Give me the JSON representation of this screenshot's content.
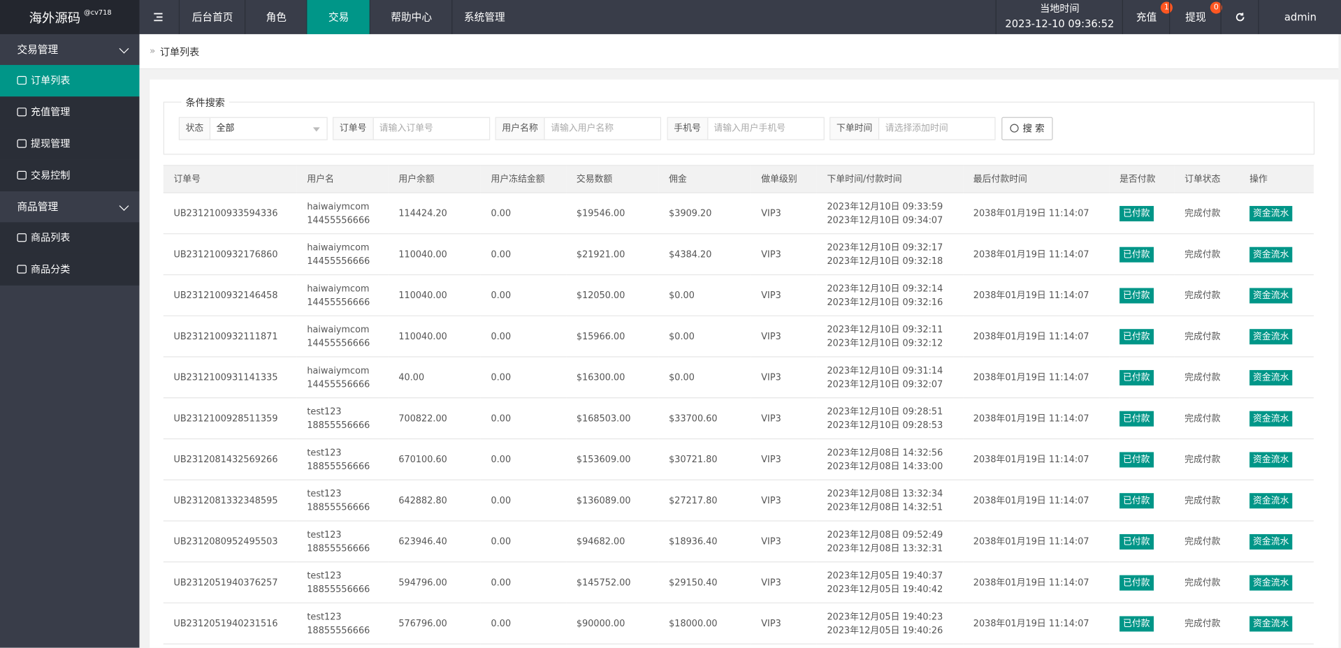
{
  "header": {
    "brand": "海外源码",
    "brand_sub": "@cv718",
    "nav": [
      "后台首页",
      "角色",
      "交易",
      "帮助中心",
      "系统管理"
    ],
    "active_nav": 2,
    "time_label": "当地时间",
    "time": "2023-12-10 09:36:52",
    "recharge": "充值",
    "recharge_badge": "1",
    "withdraw": "提现",
    "withdraw_badge": "0",
    "user": "admin"
  },
  "sidebar": [
    {
      "title": "交易管理",
      "items": [
        "订单列表",
        "充值管理",
        "提现管理",
        "交易控制"
      ]
    },
    {
      "title": "商品管理",
      "items": [
        "商品列表",
        "商品分类"
      ]
    }
  ],
  "breadcrumb": "订单列表",
  "search": {
    "legend": "条件搜索",
    "fields": [
      {
        "label": "状态",
        "value": "全部"
      },
      {
        "label": "订单号",
        "placeholder": "请输入订单号"
      },
      {
        "label": "用户名称",
        "placeholder": "请输入用户名称"
      },
      {
        "label": "手机号",
        "placeholder": "请输入用户手机号"
      },
      {
        "label": "下单时间",
        "placeholder": "请选择添加时间"
      }
    ],
    "button": "搜 索"
  },
  "table": {
    "columns": [
      "订单号",
      "用户名",
      "用户余额",
      "用户冻结金额",
      "交易数额",
      "佣金",
      "做单级别",
      "下单时间/付款时间",
      "最后付款时间",
      "是否付款",
      "订单状态",
      "操作"
    ],
    "rows": [
      [
        "UB2312100933594336",
        "haiwaiymcom",
        "14455556666",
        "114424.20",
        "0.00",
        "$19546.00",
        "$3909.20",
        "VIP3",
        "2023年12月10日 09:33:59",
        "2023年12月10日 09:34:07",
        "2038年01月19日 11:14:07",
        "已付款",
        "完成付款",
        "资金流水"
      ],
      [
        "UB2312100932176860",
        "haiwaiymcom",
        "14455556666",
        "110040.00",
        "0.00",
        "$21921.00",
        "$4384.20",
        "VIP3",
        "2023年12月10日 09:32:17",
        "2023年12月10日 09:32:18",
        "2038年01月19日 11:14:07",
        "已付款",
        "完成付款",
        "资金流水"
      ],
      [
        "UB2312100932146458",
        "haiwaiymcom",
        "14455556666",
        "110040.00",
        "0.00",
        "$12050.00",
        "$0.00",
        "VIP3",
        "2023年12月10日 09:32:14",
        "2023年12月10日 09:32:16",
        "2038年01月19日 11:14:07",
        "已付款",
        "完成付款",
        "资金流水"
      ],
      [
        "UB2312100932111871",
        "haiwaiymcom",
        "14455556666",
        "110040.00",
        "0.00",
        "$15966.00",
        "$0.00",
        "VIP3",
        "2023年12月10日 09:32:11",
        "2023年12月10日 09:32:12",
        "2038年01月19日 11:14:07",
        "已付款",
        "完成付款",
        "资金流水"
      ],
      [
        "UB2312100931141335",
        "haiwaiymcom",
        "14455556666",
        "40.00",
        "0.00",
        "$16300.00",
        "$0.00",
        "VIP3",
        "2023年12月10日 09:31:14",
        "2023年12月10日 09:32:07",
        "2038年01月19日 11:14:07",
        "已付款",
        "完成付款",
        "资金流水"
      ],
      [
        "UB2312100928511359",
        "test123",
        "18855556666",
        "700822.00",
        "0.00",
        "$168503.00",
        "$33700.60",
        "VIP3",
        "2023年12月10日 09:28:51",
        "2023年12月10日 09:28:53",
        "2038年01月19日 11:14:07",
        "已付款",
        "完成付款",
        "资金流水"
      ],
      [
        "UB2312081432569266",
        "test123",
        "18855556666",
        "670100.60",
        "0.00",
        "$153609.00",
        "$30721.80",
        "VIP3",
        "2023年12月08日 14:32:56",
        "2023年12月08日 14:33:00",
        "2038年01月19日 11:14:07",
        "已付款",
        "完成付款",
        "资金流水"
      ],
      [
        "UB2312081332348595",
        "test123",
        "18855556666",
        "642882.80",
        "0.00",
        "$136089.00",
        "$27217.80",
        "VIP3",
        "2023年12月08日 13:32:34",
        "2023年12月08日 14:32:51",
        "2038年01月19日 11:14:07",
        "已付款",
        "完成付款",
        "资金流水"
      ],
      [
        "UB2312080952495503",
        "test123",
        "18855556666",
        "623946.40",
        "0.00",
        "$94682.00",
        "$18936.40",
        "VIP3",
        "2023年12月08日 09:52:49",
        "2023年12月08日 13:32:31",
        "2038年01月19日 11:14:07",
        "已付款",
        "完成付款",
        "资金流水"
      ],
      [
        "UB2312051940376257",
        "test123",
        "18855556666",
        "594796.00",
        "0.00",
        "$145752.00",
        "$29150.40",
        "VIP3",
        "2023年12月05日 19:40:37",
        "2023年12月05日 19:40:42",
        "2038年01月19日 11:14:07",
        "已付款",
        "完成付款",
        "资金流水"
      ],
      [
        "UB2312051940231516",
        "test123",
        "18855556666",
        "576796.00",
        "0.00",
        "$90000.00",
        "$18000.00",
        "VIP3",
        "2023年12月05日 19:40:23",
        "2023年12月05日 19:40:26",
        "2038年01月19日 11:14:07",
        "已付款",
        "完成付款",
        "资金流水"
      ]
    ]
  }
}
